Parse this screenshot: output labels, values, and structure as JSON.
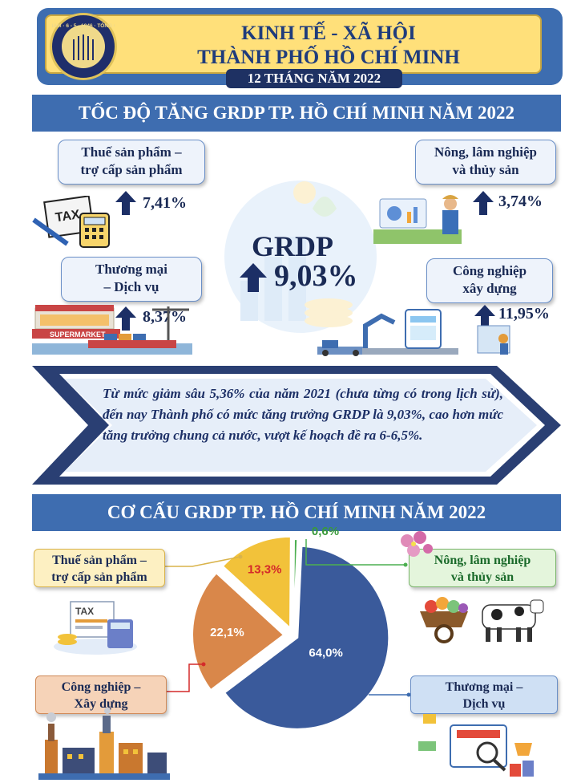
{
  "header": {
    "logo_text": "CHXHCN VIỆT NAM · 6 - 5 - 1946 · TỔNG CỤC THỐNG KÊ",
    "title_line1": "KINH TẾ - XÃ HỘI",
    "title_line2": "THÀNH PHỐ HỒ CHÍ MINH",
    "period": "12 THÁNG NĂM 2022"
  },
  "section1": {
    "title": "TỐC ĐỘ TĂNG GRDP TP. HỒ CHÍ MINH NĂM 2022",
    "center_label": "GRDP",
    "center_value": "9,03%",
    "sectors": [
      {
        "label_line1": "Thuế sản phẩm –",
        "label_line2": "trợ cấp sản phẩm",
        "value": "7,41%"
      },
      {
        "label_line1": "Nông, lâm nghiệp",
        "label_line2": "và thủy sản",
        "value": "3,74%"
      },
      {
        "label_line1": "Thương mại",
        "label_line2": "– Dịch vụ",
        "value": "8,37%"
      },
      {
        "label_line1": "Công nghiệp",
        "label_line2": "xây dựng",
        "value": "11,95%"
      }
    ],
    "illustration_tax": "TAX",
    "illustration_market": "SUPERMARKET",
    "statement": "Từ mức giảm sâu 5,36% của năm 2021 (chưa từng có trong lịch sử), đến nay Thành phố có mức tăng trưởng GRDP là 9,03%, cao hơn mức tăng trưởng chung cả nước, vượt kế hoạch đề ra 6-6,5%."
  },
  "section2": {
    "title": "CƠ CẤU GRDP TP. HỒ CHÍ MINH NĂM 2022",
    "boxes": {
      "tax": {
        "line1": "Thuế sản phẩm –",
        "line2": "trợ cấp sản phẩm"
      },
      "agri": {
        "line1": "Nông, lâm nghiệp",
        "line2": "và thủy sản"
      },
      "industry": {
        "line1": "Công nghiệp –",
        "line2": "Xây dựng"
      },
      "trade": {
        "line1": "Thương mại –",
        "line2": "Dịch vụ"
      }
    },
    "illustration_tax": "TAX"
  },
  "chart_data": {
    "type": "pie",
    "title": "CƠ CẤU GRDP TP. HỒ CHÍ MINH NĂM 2022",
    "unit": "%",
    "slices": [
      {
        "name": "Thương mại – Dịch vụ",
        "value": 64.0,
        "label": "64,0%",
        "color": "#3a5a9b"
      },
      {
        "name": "Công nghiệp – Xây dựng",
        "value": 22.1,
        "label": "22,1%",
        "color": "#d9874a"
      },
      {
        "name": "Thuế sản phẩm – trợ cấp sản phẩm",
        "value": 13.3,
        "label": "13,3%",
        "color": "#f2c23a"
      },
      {
        "name": "Nông, lâm nghiệp và thủy sản",
        "value": 0.6,
        "label": "0,6%",
        "color": "#4caf50"
      }
    ],
    "label_colors": {
      "dark": "#ffffff",
      "highlight": "#d42a2a",
      "agri": "#3a9a3a"
    }
  },
  "colors": {
    "primary_blue": "#3e6db0",
    "navy": "#1e3163",
    "header_yellow": "#ffe07a"
  }
}
